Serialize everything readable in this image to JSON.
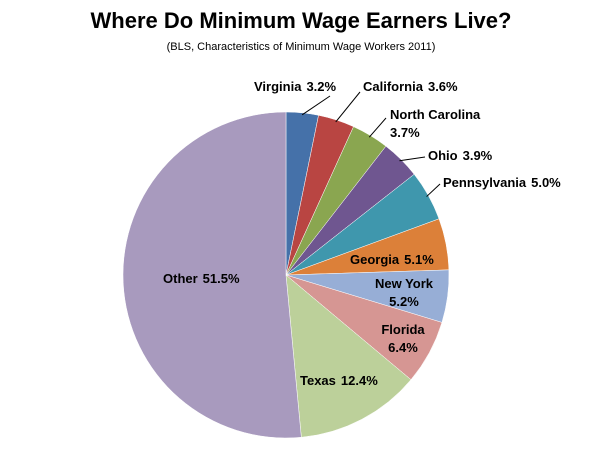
{
  "chart_data": {
    "type": "pie",
    "title": "Where Do Minimum Wage Earners Live?",
    "subtitle": "(BLS, Characteristics of Minimum Wage Workers 2011)",
    "categories": [
      "Virginia",
      "California",
      "North Carolina",
      "Ohio",
      "Pennsylvania",
      "Georgia",
      "New York",
      "Florida",
      "Texas",
      "Other"
    ],
    "values": [
      3.2,
      3.6,
      3.7,
      3.9,
      5.0,
      5.1,
      5.2,
      6.4,
      12.4,
      51.5
    ],
    "value_labels": [
      "3.2%",
      "3.6%",
      "3.7%",
      "3.9%",
      "5.0%",
      "5.1%",
      "5.2%",
      "6.4%",
      "12.4%",
      "51.5%"
    ],
    "colors": [
      "#4571a9",
      "#b94542",
      "#8aa650",
      "#6f5690",
      "#3f97ad",
      "#dc8039",
      "#97aed6",
      "#d69693",
      "#bcd09a",
      "#a89abe"
    ]
  }
}
